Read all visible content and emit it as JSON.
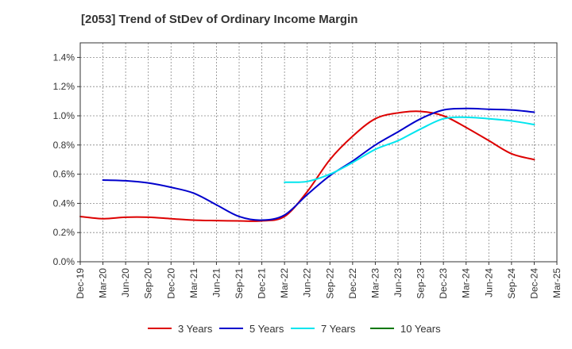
{
  "chart_data": {
    "type": "line",
    "title": "[2053]  Trend of StDev of Ordinary Income Margin",
    "xlabel": "",
    "ylabel": "",
    "ylim": [
      0,
      1.5
    ],
    "yticks": [
      0,
      0.2,
      0.4,
      0.6,
      0.8,
      1.0,
      1.2,
      1.4
    ],
    "ytick_labels": [
      "0.0%",
      "0.2%",
      "0.4%",
      "0.6%",
      "0.8%",
      "1.0%",
      "1.2%",
      "1.4%"
    ],
    "categories": [
      "Dec-19",
      "Mar-20",
      "Jun-20",
      "Sep-20",
      "Dec-20",
      "Mar-21",
      "Jun-21",
      "Sep-21",
      "Dec-21",
      "Mar-22",
      "Jun-22",
      "Sep-22",
      "Dec-22",
      "Mar-23",
      "Jun-23",
      "Sep-23",
      "Dec-23",
      "Mar-24",
      "Jun-24",
      "Sep-24",
      "Dec-24",
      "Mar-25"
    ],
    "grid": true,
    "legend_position": "bottom",
    "series": [
      {
        "name": "3 Years",
        "color": "#dd0000",
        "values": [
          0.31,
          0.295,
          0.305,
          0.305,
          0.295,
          0.285,
          0.282,
          0.28,
          0.28,
          0.31,
          0.48,
          0.7,
          0.86,
          0.98,
          1.02,
          1.03,
          1.0,
          0.92,
          0.83,
          0.74,
          0.7,
          null
        ]
      },
      {
        "name": "5 Years",
        "color": "#0000cc",
        "values": [
          null,
          0.56,
          0.555,
          0.54,
          0.51,
          0.47,
          0.39,
          0.31,
          0.285,
          0.32,
          0.46,
          0.59,
          0.69,
          0.8,
          0.89,
          0.98,
          1.04,
          1.05,
          1.045,
          1.04,
          1.025,
          null
        ]
      },
      {
        "name": "7 Years",
        "color": "#00e5ee",
        "values": [
          null,
          null,
          null,
          null,
          null,
          null,
          null,
          null,
          null,
          0.545,
          0.55,
          0.6,
          0.68,
          0.77,
          0.83,
          0.91,
          0.98,
          0.99,
          0.98,
          0.965,
          0.94,
          null
        ]
      },
      {
        "name": "10 Years",
        "color": "#007700",
        "values": [
          null,
          null,
          null,
          null,
          null,
          null,
          null,
          null,
          null,
          null,
          null,
          null,
          null,
          null,
          null,
          null,
          null,
          null,
          null,
          null,
          null,
          null
        ]
      }
    ]
  }
}
